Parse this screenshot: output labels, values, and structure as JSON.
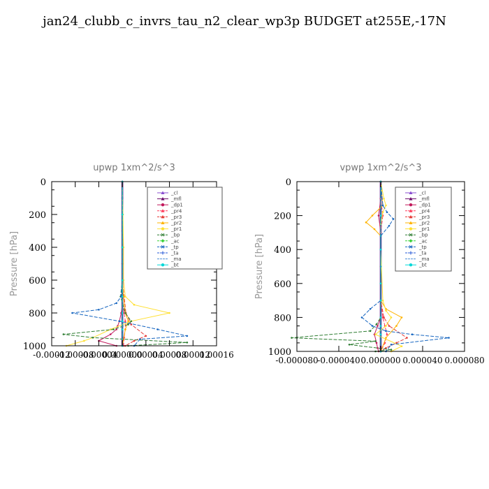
{
  "page_title": "jan24_clubb_c_invrs_tau_n2_clear_wp3p  BUDGET at255E,-17N",
  "legend_labels": [
    "_cl",
    "_mfl",
    "_dp1",
    "_pr4",
    "_pr3",
    "_pr2",
    "_pr1",
    "_bp",
    "_ac",
    "_tp",
    "_ta",
    "_ma",
    "_bt"
  ],
  "legend_colors": [
    "#8a4fd1",
    "#6a0a6a",
    "#c2185b",
    "#ff3b5c",
    "#e53935",
    "#ffb300",
    "#ffe033",
    "#2e7d32",
    "#38d138",
    "#1565c0",
    "#2a5bd7",
    "#4d8fd6",
    "#00d8d8"
  ],
  "chart_data": [
    {
      "type": "line",
      "title": "upwp   1xm^2/s^3",
      "ylabel": "Pressure [hPa]",
      "xlabel": "",
      "xlim": [
        -0.00012,
        0.00016
      ],
      "ylim": [
        1000,
        0
      ],
      "yticks": [
        0,
        200,
        400,
        600,
        800,
        1000
      ],
      "xticks": [
        -0.00012,
        -8e-05,
        -4e-05,
        0.0,
        4e-05,
        8e-05,
        0.00012,
        0.00016
      ],
      "xtick_labels": [
        "-0.00012",
        "-0.00008",
        "-0.00004",
        "0.000000",
        "0.00004",
        "0.00008",
        "0.00012",
        "0.00016"
      ],
      "legend_position": "top-right",
      "series": [
        {
          "name": "_cl",
          "x": [
            0,
            0,
            0,
            0,
            0,
            0,
            0,
            0,
            0,
            0,
            0,
            0
          ],
          "y": [
            0,
            100,
            200,
            300,
            400,
            500,
            600,
            700,
            800,
            850,
            900,
            1000
          ]
        },
        {
          "name": "_mfl",
          "x": [
            0,
            0,
            0,
            0,
            0,
            0,
            0,
            0,
            0,
            0,
            0,
            0
          ],
          "y": [
            0,
            100,
            200,
            300,
            400,
            500,
            600,
            700,
            800,
            850,
            900,
            1000
          ]
        },
        {
          "name": "_dp1",
          "x": [
            0,
            0,
            0,
            0,
            0,
            0,
            -2e-06,
            -5e-06,
            -8e-06,
            -1e-05,
            -2e-05,
            -4e-05,
            -1e-05
          ],
          "y": [
            0,
            200,
            400,
            600,
            700,
            750,
            800,
            850,
            880,
            900,
            930,
            970,
            1000
          ]
        },
        {
          "name": "_pr4",
          "x": [
            0,
            0,
            0,
            0,
            0,
            3e-06,
            5e-06,
            5e-06,
            3e-06,
            2e-06
          ],
          "y": [
            0,
            200,
            400,
            600,
            700,
            800,
            850,
            900,
            950,
            1000
          ]
        },
        {
          "name": "_pr3",
          "x": [
            0,
            0,
            0,
            0,
            3e-06,
            6e-06,
            1.5e-05,
            4e-05,
            2e-05,
            5e-06
          ],
          "y": [
            0,
            200,
            400,
            600,
            700,
            800,
            870,
            940,
            970,
            1000
          ]
        },
        {
          "name": "_pr2",
          "x": [
            0,
            0,
            0,
            0,
            2e-06,
            5e-06,
            1e-05,
            5e-06,
            0
          ],
          "y": [
            0,
            200,
            400,
            600,
            700,
            800,
            850,
            900,
            1000
          ]
        },
        {
          "name": "_pr1",
          "x": [
            0,
            1e-06,
            2e-06,
            2e-06,
            5e-06,
            2e-05,
            8e-05,
            1.5e-05,
            -2e-05,
            -5e-05,
            -6.5e-05,
            -9.5e-05
          ],
          "y": [
            0,
            200,
            400,
            600,
            700,
            750,
            800,
            850,
            900,
            950,
            970,
            1000
          ]
        },
        {
          "name": "_bp",
          "x": [
            0,
            0,
            0,
            0,
            -3e-06,
            5e-06,
            1.5e-05,
            1e-05,
            -1.5e-05,
            -0.0001,
            -5e-05,
            0.00011,
            1e-05
          ],
          "y": [
            0,
            200,
            400,
            600,
            700,
            800,
            850,
            870,
            900,
            930,
            950,
            980,
            1000
          ]
        },
        {
          "name": "_ac",
          "x": [
            0,
            0,
            0,
            0,
            0,
            0,
            0,
            0,
            0
          ],
          "y": [
            0,
            200,
            400,
            600,
            700,
            800,
            850,
            900,
            1000
          ]
        },
        {
          "name": "_tp",
          "x": [
            0,
            0,
            0,
            0,
            -2e-06,
            -1e-05,
            -4e-05,
            -8.5e-05,
            -5e-06,
            6e-05,
            0.00011,
            3e-05,
            2e-05
          ],
          "y": [
            0,
            200,
            400,
            600,
            700,
            740,
            780,
            800,
            850,
            900,
            940,
            960,
            1000
          ]
        },
        {
          "name": "_ta",
          "x": [
            0,
            0,
            0,
            0,
            0,
            0,
            0,
            0,
            0
          ],
          "y": [
            0,
            200,
            400,
            600,
            700,
            800,
            850,
            900,
            1000
          ]
        },
        {
          "name": "_ma",
          "x": [
            0,
            0,
            0,
            0,
            0,
            0,
            0,
            0,
            0
          ],
          "y": [
            0,
            200,
            400,
            600,
            700,
            800,
            850,
            900,
            1000
          ]
        },
        {
          "name": "_bt",
          "x": [
            0,
            0,
            0,
            0,
            0,
            0,
            0,
            0,
            0
          ],
          "y": [
            0,
            200,
            400,
            600,
            700,
            800,
            850,
            900,
            1000
          ]
        }
      ]
    },
    {
      "type": "line",
      "title": "vpwp   1xm^2/s^3",
      "ylabel": "Pressure [hPa]",
      "xlabel": "",
      "xlim": [
        -8e-05,
        8e-05
      ],
      "ylim": [
        1000,
        0
      ],
      "yticks": [
        0,
        200,
        400,
        600,
        800,
        1000
      ],
      "xticks": [
        -8e-05,
        -4e-05,
        0.0,
        4e-05,
        8e-05
      ],
      "xtick_labels": [
        "-0.000080",
        "-0.000040",
        "0.000000",
        "0.000040",
        "0.000080"
      ],
      "legend_position": "top-right",
      "series": [
        {
          "name": "_cl",
          "x": [
            0,
            0,
            0,
            0,
            0,
            0,
            0,
            0,
            0,
            0,
            0,
            0
          ],
          "y": [
            0,
            100,
            200,
            300,
            400,
            500,
            600,
            700,
            800,
            850,
            900,
            1000
          ]
        },
        {
          "name": "_mfl",
          "x": [
            0,
            0,
            0,
            0,
            0,
            0,
            0,
            0,
            0,
            0,
            0,
            0
          ],
          "y": [
            0,
            100,
            200,
            300,
            400,
            500,
            600,
            700,
            800,
            850,
            900,
            1000
          ]
        },
        {
          "name": "_dp1",
          "x": [
            0,
            0,
            -2e-06,
            0,
            0,
            0,
            0,
            -3e-06,
            -6e-06,
            -4e-06,
            -3e-06,
            -2e-06
          ],
          "y": [
            0,
            100,
            200,
            300,
            500,
            700,
            800,
            850,
            900,
            950,
            980,
            1000
          ]
        },
        {
          "name": "_pr4",
          "x": [
            0,
            0,
            2e-06,
            0,
            0,
            0,
            2e-06,
            4e-06,
            6e-06,
            4e-06,
            0
          ],
          "y": [
            0,
            100,
            200,
            300,
            500,
            700,
            800,
            850,
            900,
            950,
            1000
          ]
        },
        {
          "name": "_pr3",
          "x": [
            0,
            0,
            0,
            0,
            0,
            3e-06,
            8e-06,
            2.5e-05,
            1.5e-05,
            5e-06,
            0
          ],
          "y": [
            0,
            200,
            400,
            600,
            700,
            800,
            850,
            920,
            950,
            980,
            1000
          ]
        },
        {
          "name": "_pr2",
          "x": [
            0,
            2e-06,
            -8e-06,
            -1.4e-05,
            -6e-06,
            0,
            0,
            0,
            5e-06,
            2e-05,
            1.5e-05,
            5e-06,
            0
          ],
          "y": [
            0,
            140,
            200,
            240,
            280,
            320,
            500,
            700,
            750,
            800,
            850,
            920,
            1000
          ]
        },
        {
          "name": "_pr1",
          "x": [
            0,
            3e-06,
            5e-06,
            2e-06,
            0,
            0,
            2e-06,
            5e-06,
            1e-05,
            5e-06,
            -5e-06,
            2e-05,
            1e-05
          ],
          "y": [
            0,
            100,
            140,
            180,
            250,
            400,
            700,
            760,
            800,
            850,
            900,
            970,
            1000
          ]
        },
        {
          "name": "_bp",
          "x": [
            0,
            0,
            0,
            0,
            0,
            0,
            -4e-06,
            -1e-05,
            -8.5e-05,
            -5e-06,
            -3e-05,
            1e-05,
            -5e-06
          ],
          "y": [
            0,
            200,
            400,
            600,
            700,
            800,
            840,
            880,
            920,
            940,
            960,
            990,
            1000
          ]
        },
        {
          "name": "_ac",
          "x": [
            0,
            0,
            0,
            0,
            0,
            0,
            0,
            0,
            0
          ],
          "y": [
            0,
            200,
            400,
            600,
            700,
            800,
            850,
            900,
            1000
          ]
        },
        {
          "name": "_tp",
          "x": [
            0,
            2e-06,
            6e-06,
            1.2e-05,
            8e-06,
            0,
            0,
            0,
            -1e-05,
            -1.8e-05,
            -8e-06,
            5e-06,
            3e-05,
            6.5e-05,
            1e-05,
            5e-06
          ],
          "y": [
            0,
            140,
            180,
            220,
            260,
            320,
            500,
            700,
            750,
            800,
            850,
            880,
            900,
            920,
            960,
            1000
          ]
        },
        {
          "name": "_ta",
          "x": [
            0,
            0,
            0,
            0,
            0,
            0,
            0,
            0,
            0
          ],
          "y": [
            0,
            200,
            400,
            600,
            700,
            800,
            850,
            900,
            1000
          ]
        },
        {
          "name": "_ma",
          "x": [
            0,
            0,
            0,
            0,
            0,
            0,
            0,
            0,
            0
          ],
          "y": [
            0,
            200,
            400,
            600,
            700,
            800,
            850,
            900,
            1000
          ]
        },
        {
          "name": "_bt",
          "x": [
            0,
            0,
            0,
            0,
            0,
            0,
            0,
            0,
            0
          ],
          "y": [
            0,
            200,
            400,
            600,
            700,
            800,
            850,
            900,
            1000
          ]
        }
      ]
    }
  ]
}
